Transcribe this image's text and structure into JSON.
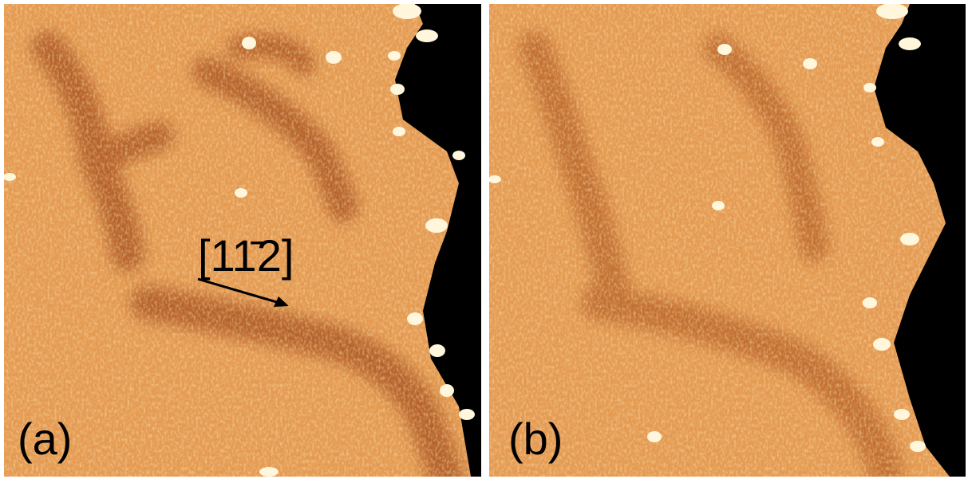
{
  "panels": [
    {
      "label": "(a)"
    },
    {
      "label": "(b)"
    }
  ],
  "annotation": {
    "direction": "[11̄2]"
  }
}
